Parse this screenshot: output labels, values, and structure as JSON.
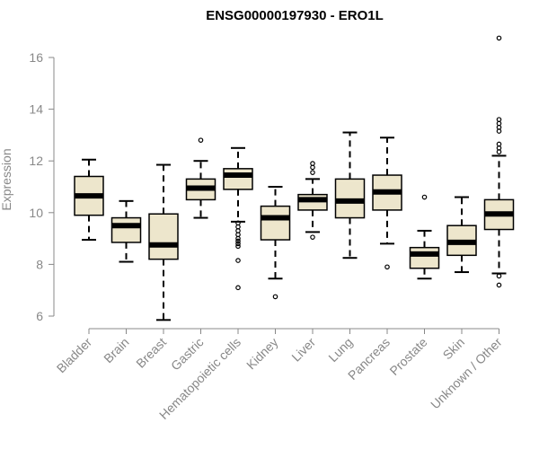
{
  "chart_data": {
    "type": "boxplot",
    "title": "ENSG00000197930 - ERO1L",
    "xlabel": "",
    "ylabel": "Expression",
    "ylim": [
      5.7,
      16.9
    ],
    "yticks": [
      6,
      8,
      10,
      12,
      14,
      16
    ],
    "grid": false,
    "legend": "none",
    "colors": {
      "box_fill": "#ede6cc",
      "stroke": "#000000",
      "median": "#000000",
      "axis": "#888888"
    },
    "categories": [
      "Bladder",
      "Brain",
      "Breast",
      "Gastric",
      "Hematopoietic cells",
      "Kidney",
      "Liver",
      "Lung",
      "Pancreas",
      "Prostate",
      "Skin",
      "Unknown / Other"
    ],
    "boxes": [
      {
        "q1": 9.9,
        "median": 10.65,
        "q3": 11.4,
        "whisker_low": 8.95,
        "whisker_high": 12.05,
        "outliers": []
      },
      {
        "q1": 8.85,
        "median": 9.5,
        "q3": 9.8,
        "whisker_low": 8.1,
        "whisker_high": 10.45,
        "outliers": []
      },
      {
        "q1": 8.2,
        "median": 8.75,
        "q3": 9.95,
        "whisker_low": 5.85,
        "whisker_high": 11.85,
        "outliers": []
      },
      {
        "q1": 10.5,
        "median": 10.95,
        "q3": 11.3,
        "whisker_low": 9.8,
        "whisker_high": 12.0,
        "outliers": [
          12.8
        ]
      },
      {
        "q1": 10.9,
        "median": 11.45,
        "q3": 11.7,
        "whisker_low": 9.65,
        "whisker_high": 12.5,
        "outliers": [
          9.6,
          9.45,
          9.3,
          9.15,
          9.0,
          8.9,
          8.8,
          8.7,
          8.15,
          7.1
        ]
      },
      {
        "q1": 8.95,
        "median": 9.8,
        "q3": 10.25,
        "whisker_low": 7.45,
        "whisker_high": 11.0,
        "outliers": [
          6.75
        ]
      },
      {
        "q1": 10.1,
        "median": 10.5,
        "q3": 10.7,
        "whisker_low": 9.25,
        "whisker_high": 11.3,
        "outliers": [
          11.55,
          11.75,
          11.9,
          9.05
        ]
      },
      {
        "q1": 9.8,
        "median": 10.45,
        "q3": 11.3,
        "whisker_low": 8.25,
        "whisker_high": 13.1,
        "outliers": []
      },
      {
        "q1": 10.1,
        "median": 10.8,
        "q3": 11.45,
        "whisker_low": 8.8,
        "whisker_high": 12.9,
        "outliers": [
          7.9
        ]
      },
      {
        "q1": 7.85,
        "median": 8.4,
        "q3": 8.65,
        "whisker_low": 7.45,
        "whisker_high": 9.3,
        "outliers": [
          10.6
        ]
      },
      {
        "q1": 8.35,
        "median": 8.85,
        "q3": 9.5,
        "whisker_low": 7.7,
        "whisker_high": 10.6,
        "outliers": []
      },
      {
        "q1": 9.35,
        "median": 9.95,
        "q3": 10.5,
        "whisker_low": 7.65,
        "whisker_high": 12.2,
        "outliers": [
          16.75,
          13.6,
          13.45,
          13.3,
          13.15,
          12.65,
          12.5,
          12.35,
          7.55,
          7.2
        ]
      }
    ]
  }
}
